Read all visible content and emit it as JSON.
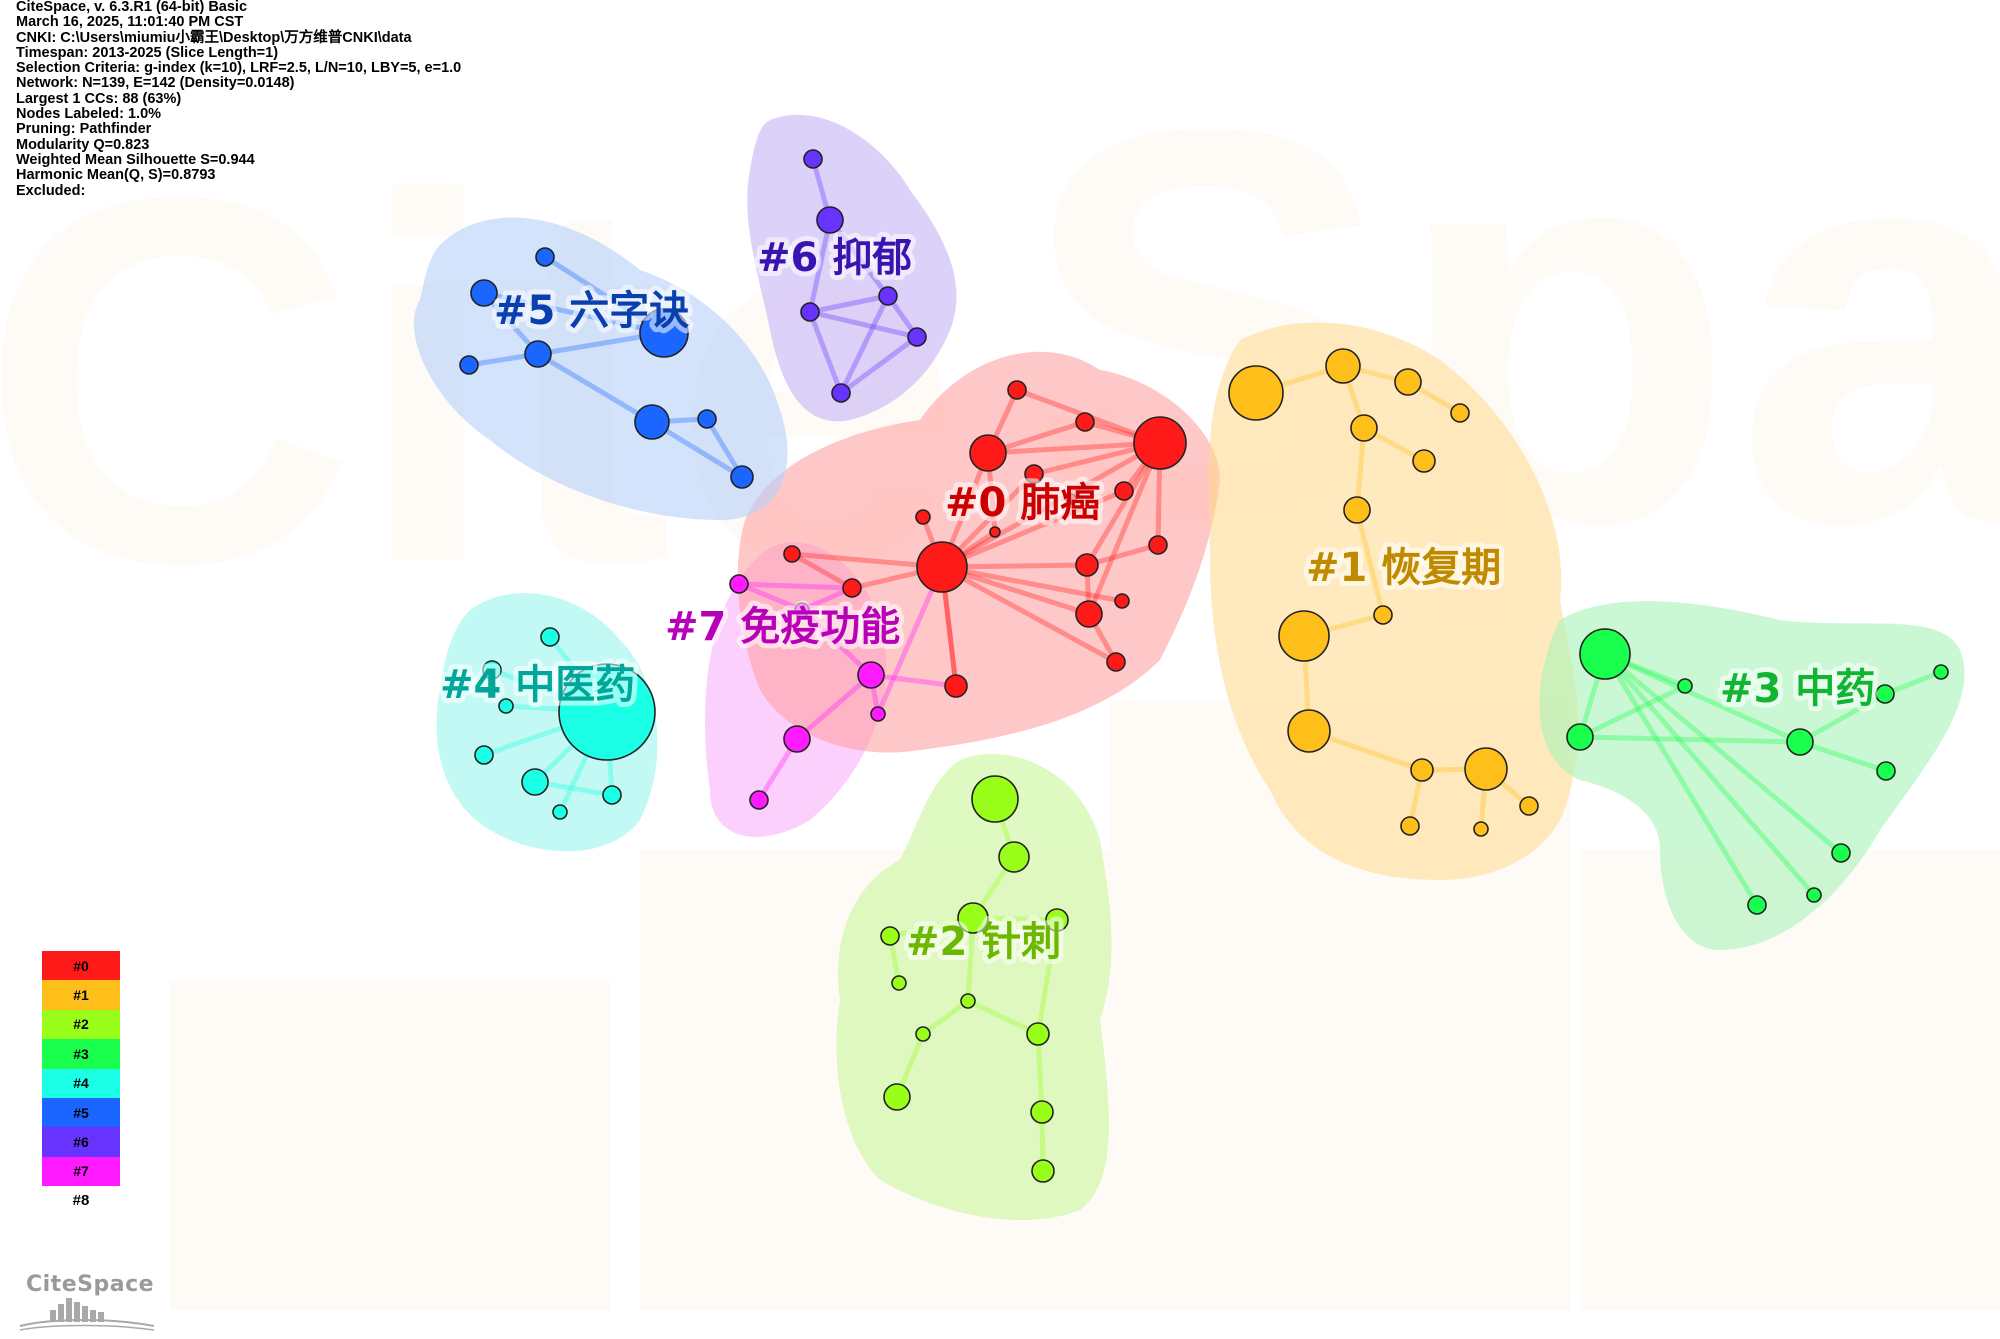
{
  "meta": {
    "lines": [
      "CiteSpace, v. 6.3.R1 (64-bit) Basic",
      "March 16, 2025, 11:01:40 PM CST",
      "CNKI: C:\\Users\\miumiu小霸王\\Desktop\\万方维普CNKI\\data",
      "Timespan: 2013-2025 (Slice Length=1)",
      "Selection Criteria: g-index (k=10), LRF=2.5, L/N=10, LBY=5, e=1.0",
      "Network: N=139, E=142 (Density=0.0148)",
      "Largest 1 CCs: 88 (63%)",
      "Nodes Labeled: 1.0%",
      "Pruning: Pathfinder",
      "Modularity Q=0.823",
      "Weighted Mean Silhouette S=0.944",
      "Harmonic Mean(Q, S)=0.8793",
      "Excluded:"
    ]
  },
  "clusters": [
    {
      "id": "c0",
      "label": "#0 肺癌",
      "color": "#ff1a1a",
      "hull": "#ff9a9a",
      "text": "#cc0000"
    },
    {
      "id": "c1",
      "label": "#1 恢复期",
      "color": "#ffbf1a",
      "hull": "#ffd98a",
      "text": "#c08a00"
    },
    {
      "id": "c2",
      "label": "#2 针刺",
      "color": "#99ff1a",
      "hull": "#d2f7a8",
      "text": "#6cb800"
    },
    {
      "id": "c3",
      "label": "#3 中药",
      "color": "#1aff4d",
      "hull": "#a9f3b7",
      "text": "#12b532"
    },
    {
      "id": "c4",
      "label": "#4 中医药",
      "color": "#1affe6",
      "hull": "#a9f7f0",
      "text": "#00a69a"
    },
    {
      "id": "c5",
      "label": "#5 六字诀",
      "color": "#1a66ff",
      "hull": "#b5d0fa",
      "text": "#0a3fb0"
    },
    {
      "id": "c6",
      "label": "#6 抑郁",
      "color": "#6633ff",
      "hull": "#cdbdf7",
      "text": "#3a14b0"
    },
    {
      "id": "c7",
      "label": "#7 免疫功能",
      "color": "#ff1aff",
      "hull": "#fab0fa",
      "text": "#b800b8"
    }
  ],
  "legend": {
    "items": [
      {
        "label": "#0",
        "color": "#ff1a1a"
      },
      {
        "label": "#1",
        "color": "#ffbf1a"
      },
      {
        "label": "#2",
        "color": "#99ff1a"
      },
      {
        "label": "#3",
        "color": "#1aff4d"
      },
      {
        "label": "#4",
        "color": "#1affe6"
      },
      {
        "label": "#5",
        "color": "#1a66ff"
      },
      {
        "label": "#6",
        "color": "#6633ff"
      },
      {
        "label": "#7",
        "color": "#ff1aff"
      }
    ],
    "last_label": "#8"
  },
  "logo": {
    "text": "CiteSpace"
  }
}
